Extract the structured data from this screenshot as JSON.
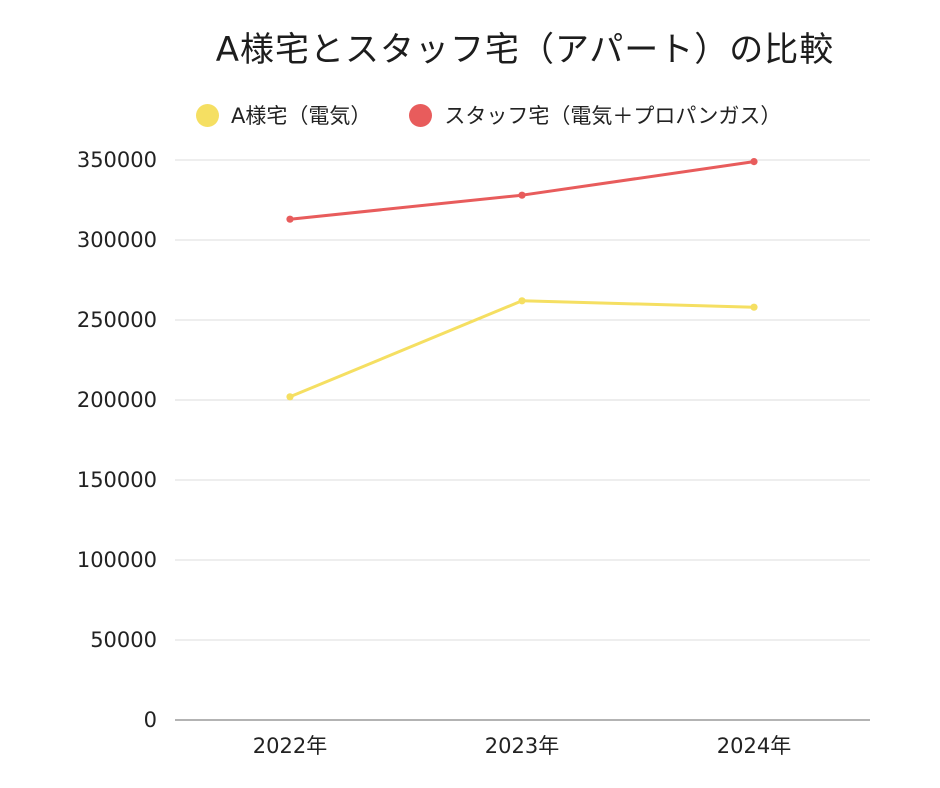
{
  "chart_data": {
    "type": "line",
    "title": "A様宅とスタッフ宅（アパート）の比較",
    "categories": [
      "2022年",
      "2023年",
      "2024年"
    ],
    "series": [
      {
        "name": "A様宅（電気）",
        "color": "#f5df62",
        "values": [
          202000,
          262000,
          258000
        ]
      },
      {
        "name": "スタッフ宅（電気＋プロパンガス）",
        "color": "#e85c5c",
        "values": [
          313000,
          328000,
          349000
        ]
      }
    ],
    "ylim": [
      0,
      350000
    ],
    "yticks": [
      0,
      50000,
      100000,
      150000,
      200000,
      250000,
      300000,
      350000
    ],
    "grid": true,
    "legend": "top",
    "xlabel": "",
    "ylabel": ""
  }
}
